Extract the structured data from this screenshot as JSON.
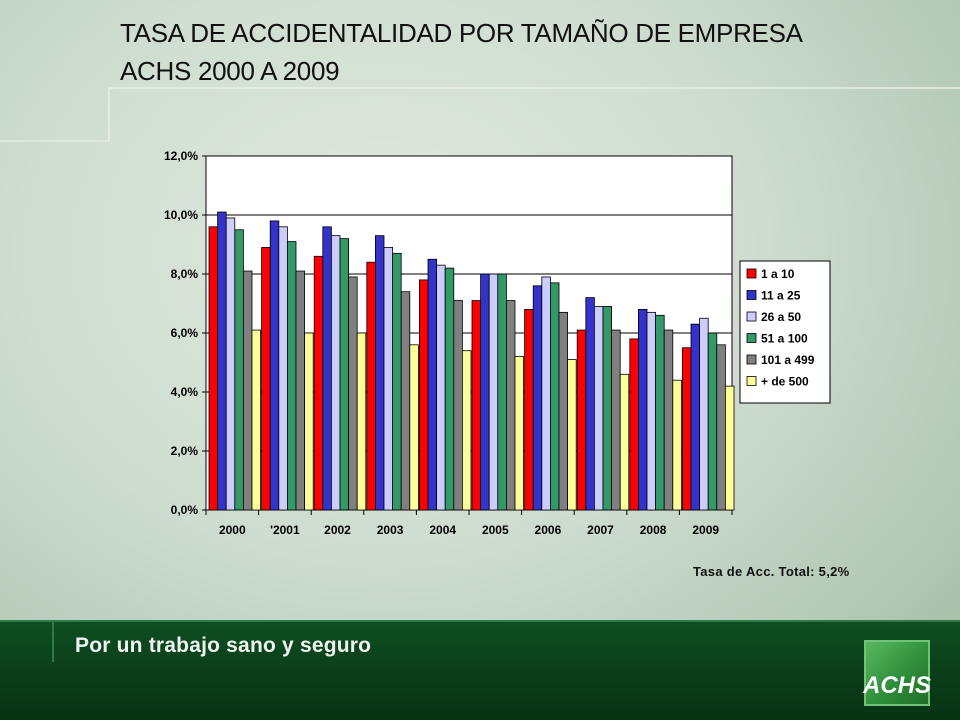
{
  "title": {
    "line1": "TASA DE ACCIDENTALIDAD POR TAMAÑO DE EMPRESA",
    "line2": "ACHS 2000 A 2009"
  },
  "total_note": "Tasa de Acc. Total: 5,2%",
  "footer": {
    "slogan": "Por un trabajo sano y seguro",
    "logo_text": "ACHS"
  },
  "colors": {
    "series": [
      "#ff0000",
      "#3333cc",
      "#ccccff",
      "#339966",
      "#808080",
      "#ffff99"
    ]
  },
  "chart_data": {
    "type": "bar",
    "categories": [
      "2000",
      "'2001",
      "2002",
      "2003",
      "2004",
      "2005",
      "2006",
      "2007",
      "2008",
      "2009"
    ],
    "ylim": [
      0,
      12
    ],
    "yticks": [
      "0,0%",
      "2,0%",
      "4,0%",
      "6,0%",
      "8,0%",
      "10,0%",
      "12,0%"
    ],
    "grid": "horizontal",
    "legend_position": "right",
    "series": [
      {
        "name": "1 a 10",
        "values": [
          9.6,
          8.9,
          8.6,
          8.4,
          7.8,
          7.1,
          6.8,
          6.1,
          5.8,
          5.5
        ]
      },
      {
        "name": "11 a 25",
        "values": [
          10.1,
          9.8,
          9.6,
          9.3,
          8.5,
          8.0,
          7.6,
          7.2,
          6.8,
          6.3
        ]
      },
      {
        "name": "26 a 50",
        "values": [
          9.9,
          9.6,
          9.3,
          8.9,
          8.3,
          8.0,
          7.9,
          6.9,
          6.7,
          6.5
        ]
      },
      {
        "name": "51 a 100",
        "values": [
          9.5,
          9.1,
          9.2,
          8.7,
          8.2,
          8.0,
          7.7,
          6.9,
          6.6,
          6.0
        ]
      },
      {
        "name": "101 a 499",
        "values": [
          8.1,
          8.1,
          7.9,
          7.4,
          7.1,
          7.1,
          6.7,
          6.1,
          6.1,
          5.6
        ]
      },
      {
        "name": "+ de 500",
        "values": [
          6.1,
          6.0,
          6.0,
          5.6,
          5.4,
          5.2,
          5.1,
          4.6,
          4.4,
          4.2
        ]
      }
    ]
  }
}
